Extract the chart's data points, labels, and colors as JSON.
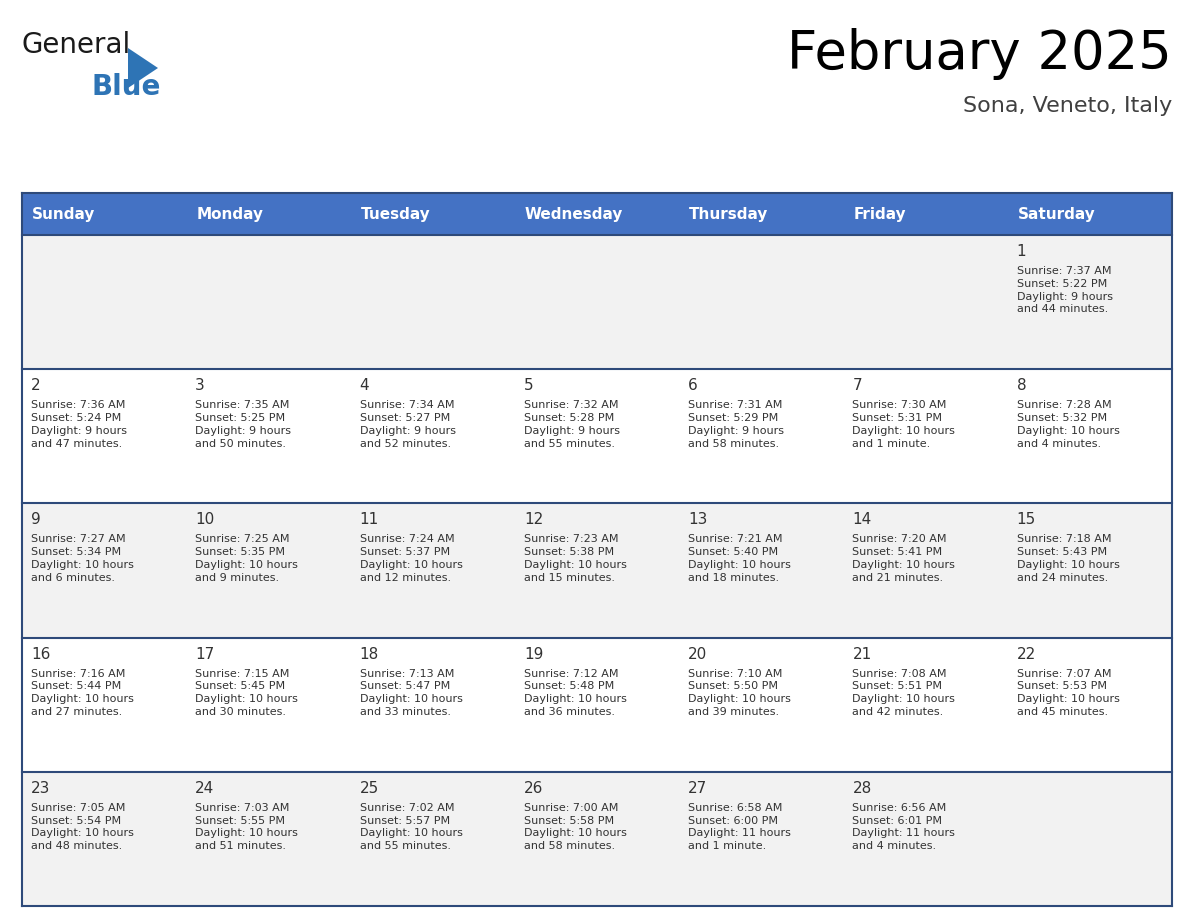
{
  "title": "February 2025",
  "subtitle": "Sona, Veneto, Italy",
  "header_bg": "#4472C4",
  "header_text_color": "#FFFFFF",
  "cell_bg_odd": "#F2F2F2",
  "cell_bg_even": "#FFFFFF",
  "border_color": "#2E4A7A",
  "day_headers": [
    "Sunday",
    "Monday",
    "Tuesday",
    "Wednesday",
    "Thursday",
    "Friday",
    "Saturday"
  ],
  "calendar_data": [
    [
      null,
      null,
      null,
      null,
      null,
      null,
      {
        "day": "1",
        "sunrise": "7:37 AM",
        "sunset": "5:22 PM",
        "daylight": "9 hours\nand 44 minutes."
      }
    ],
    [
      {
        "day": "2",
        "sunrise": "7:36 AM",
        "sunset": "5:24 PM",
        "daylight": "9 hours\nand 47 minutes."
      },
      {
        "day": "3",
        "sunrise": "7:35 AM",
        "sunset": "5:25 PM",
        "daylight": "9 hours\nand 50 minutes."
      },
      {
        "day": "4",
        "sunrise": "7:34 AM",
        "sunset": "5:27 PM",
        "daylight": "9 hours\nand 52 minutes."
      },
      {
        "day": "5",
        "sunrise": "7:32 AM",
        "sunset": "5:28 PM",
        "daylight": "9 hours\nand 55 minutes."
      },
      {
        "day": "6",
        "sunrise": "7:31 AM",
        "sunset": "5:29 PM",
        "daylight": "9 hours\nand 58 minutes."
      },
      {
        "day": "7",
        "sunrise": "7:30 AM",
        "sunset": "5:31 PM",
        "daylight": "10 hours\nand 1 minute."
      },
      {
        "day": "8",
        "sunrise": "7:28 AM",
        "sunset": "5:32 PM",
        "daylight": "10 hours\nand 4 minutes."
      }
    ],
    [
      {
        "day": "9",
        "sunrise": "7:27 AM",
        "sunset": "5:34 PM",
        "daylight": "10 hours\nand 6 minutes."
      },
      {
        "day": "10",
        "sunrise": "7:25 AM",
        "sunset": "5:35 PM",
        "daylight": "10 hours\nand 9 minutes."
      },
      {
        "day": "11",
        "sunrise": "7:24 AM",
        "sunset": "5:37 PM",
        "daylight": "10 hours\nand 12 minutes."
      },
      {
        "day": "12",
        "sunrise": "7:23 AM",
        "sunset": "5:38 PM",
        "daylight": "10 hours\nand 15 minutes."
      },
      {
        "day": "13",
        "sunrise": "7:21 AM",
        "sunset": "5:40 PM",
        "daylight": "10 hours\nand 18 minutes."
      },
      {
        "day": "14",
        "sunrise": "7:20 AM",
        "sunset": "5:41 PM",
        "daylight": "10 hours\nand 21 minutes."
      },
      {
        "day": "15",
        "sunrise": "7:18 AM",
        "sunset": "5:43 PM",
        "daylight": "10 hours\nand 24 minutes."
      }
    ],
    [
      {
        "day": "16",
        "sunrise": "7:16 AM",
        "sunset": "5:44 PM",
        "daylight": "10 hours\nand 27 minutes."
      },
      {
        "day": "17",
        "sunrise": "7:15 AM",
        "sunset": "5:45 PM",
        "daylight": "10 hours\nand 30 minutes."
      },
      {
        "day": "18",
        "sunrise": "7:13 AM",
        "sunset": "5:47 PM",
        "daylight": "10 hours\nand 33 minutes."
      },
      {
        "day": "19",
        "sunrise": "7:12 AM",
        "sunset": "5:48 PM",
        "daylight": "10 hours\nand 36 minutes."
      },
      {
        "day": "20",
        "sunrise": "7:10 AM",
        "sunset": "5:50 PM",
        "daylight": "10 hours\nand 39 minutes."
      },
      {
        "day": "21",
        "sunrise": "7:08 AM",
        "sunset": "5:51 PM",
        "daylight": "10 hours\nand 42 minutes."
      },
      {
        "day": "22",
        "sunrise": "7:07 AM",
        "sunset": "5:53 PM",
        "daylight": "10 hours\nand 45 minutes."
      }
    ],
    [
      {
        "day": "23",
        "sunrise": "7:05 AM",
        "sunset": "5:54 PM",
        "daylight": "10 hours\nand 48 minutes."
      },
      {
        "day": "24",
        "sunrise": "7:03 AM",
        "sunset": "5:55 PM",
        "daylight": "10 hours\nand 51 minutes."
      },
      {
        "day": "25",
        "sunrise": "7:02 AM",
        "sunset": "5:57 PM",
        "daylight": "10 hours\nand 55 minutes."
      },
      {
        "day": "26",
        "sunrise": "7:00 AM",
        "sunset": "5:58 PM",
        "daylight": "10 hours\nand 58 minutes."
      },
      {
        "day": "27",
        "sunrise": "6:58 AM",
        "sunset": "6:00 PM",
        "daylight": "11 hours\nand 1 minute."
      },
      {
        "day": "28",
        "sunrise": "6:56 AM",
        "sunset": "6:01 PM",
        "daylight": "11 hours\nand 4 minutes."
      },
      null
    ]
  ],
  "logo_triangle_color": "#2E74B5",
  "text_color_dark": "#333333",
  "text_color_day_num": "#333333",
  "logo_general_color": "#1a1a1a",
  "logo_blue_color": "#2E74B5"
}
